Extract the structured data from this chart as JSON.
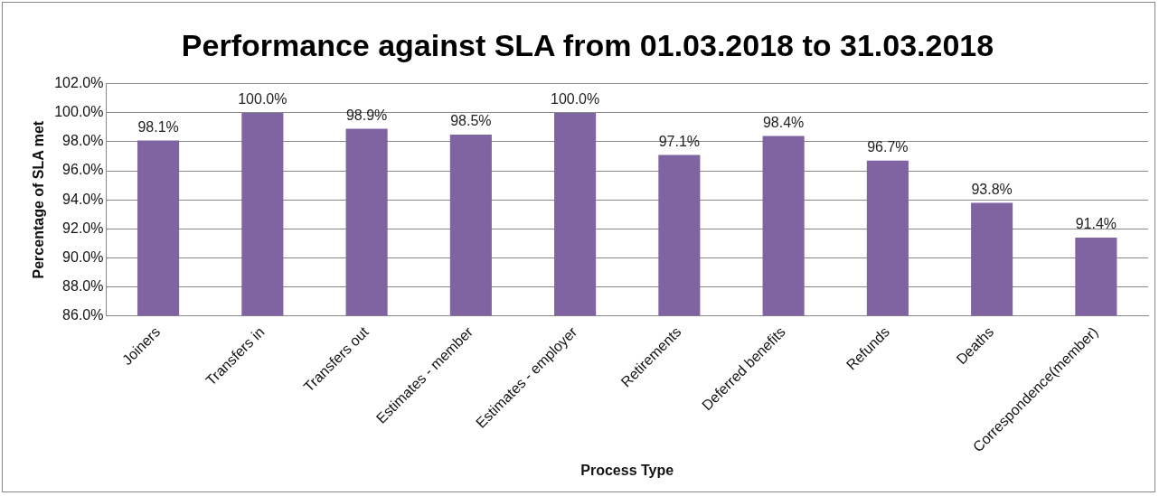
{
  "chart_data": {
    "type": "bar",
    "title": "Performance against SLA from 01.03.2018 to 31.03.2018",
    "xlabel": "Process Type",
    "ylabel": "Percentage of SLA met",
    "categories": [
      "Joiners",
      "Transfers in",
      "Transfers out",
      "Estimates - member",
      "Estimates - employer",
      "Retirements",
      "Deferred benefits",
      "Refunds",
      "Deaths",
      "Correspondence(member)"
    ],
    "values": [
      98.1,
      100.0,
      98.9,
      98.5,
      100.0,
      97.1,
      98.4,
      96.7,
      93.8,
      91.4
    ],
    "value_labels": [
      "98.1%",
      "100.0%",
      "98.9%",
      "98.5%",
      "100.0%",
      "97.1%",
      "98.4%",
      "96.7%",
      "93.8%",
      "91.4%"
    ],
    "color": "#8064a2",
    "ylim": [
      86,
      102
    ],
    "yticks": [
      {
        "value": 86,
        "label": "86.0%"
      },
      {
        "value": 88,
        "label": "88.0%"
      },
      {
        "value": 90,
        "label": "90.0%"
      },
      {
        "value": 92,
        "label": "92.0%"
      },
      {
        "value": 94,
        "label": "94.0%"
      },
      {
        "value": 96,
        "label": "96.0%"
      },
      {
        "value": 98,
        "label": "98.0%"
      },
      {
        "value": 100,
        "label": "100.0%"
      },
      {
        "value": 102,
        "label": "102.0%"
      }
    ],
    "grid": "y",
    "legend": false
  }
}
